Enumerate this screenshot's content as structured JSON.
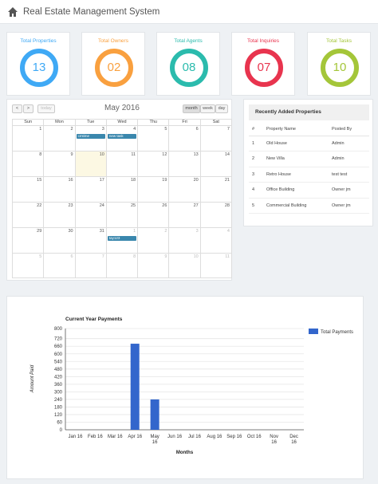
{
  "app": {
    "title": "Real Estate Management System"
  },
  "stats": [
    {
      "label": "Total Properties",
      "value": "13",
      "color": "#3fa9f5"
    },
    {
      "label": "Total Owners",
      "value": "02",
      "color": "#f9a03f"
    },
    {
      "label": "Total Agents",
      "value": "08",
      "color": "#2bbbad"
    },
    {
      "label": "Total Inquiries",
      "value": "07",
      "color": "#e8344e"
    },
    {
      "label": "Total Tasks",
      "value": "10",
      "color": "#a4c639"
    }
  ],
  "calendar": {
    "title": "May 2016",
    "prev": "<",
    "next": ">",
    "today": "today",
    "views": [
      "month",
      "week",
      "day"
    ],
    "active_view": "month",
    "days": [
      "Sun",
      "Mon",
      "Tue",
      "Wed",
      "Thu",
      "Fri",
      "Sat"
    ],
    "weeks": [
      [
        "1",
        "2",
        "3",
        "4",
        "5",
        "6",
        "7"
      ],
      [
        "8",
        "9",
        "10",
        "11",
        "12",
        "13",
        "14"
      ],
      [
        "15",
        "16",
        "17",
        "18",
        "19",
        "20",
        "21"
      ],
      [
        "22",
        "23",
        "24",
        "25",
        "26",
        "27",
        "28"
      ],
      [
        "29",
        "30",
        "31",
        "1",
        "2",
        "3",
        "4"
      ],
      [
        "5",
        "6",
        "7",
        "8",
        "9",
        "10",
        "11"
      ]
    ],
    "today_date": "10",
    "events": [
      {
        "week": 0,
        "day": 2,
        "label": "cmtime"
      },
      {
        "week": 0,
        "day": 3,
        "label": "new task"
      },
      {
        "week": 4,
        "day": 3,
        "label": "tay123"
      }
    ]
  },
  "properties": {
    "title": "Recently Added Properties",
    "columns": [
      "#",
      "Property Name",
      "Posted By"
    ],
    "rows": [
      [
        "1",
        "Old House",
        "Admin"
      ],
      [
        "2",
        "New Villa",
        "Admin"
      ],
      [
        "3",
        "Retro House",
        "test test"
      ],
      [
        "4",
        "Office Building",
        "Owner jm"
      ],
      [
        "5",
        "Commercial Building",
        "Owner jm"
      ]
    ]
  },
  "chart_data": {
    "type": "bar",
    "title": "Current Year Payments",
    "xlabel": "Months",
    "ylabel": "Amount Paid",
    "categories": [
      "Jan 16",
      "Feb 16",
      "Mar 16",
      "Apr 16",
      "May 16",
      "Jun 16",
      "Jul 16",
      "Aug 16",
      "Sep 16",
      "Oct 16",
      "Nov 16",
      "Dec 16"
    ],
    "series": [
      {
        "name": "Total Payments",
        "values": [
          0,
          0,
          0,
          680,
          240,
          0,
          0,
          0,
          0,
          0,
          0,
          0
        ],
        "color": "#3366cc"
      }
    ],
    "ylim": [
      0,
      800
    ],
    "yticks": [
      0,
      60,
      120,
      180,
      240,
      300,
      360,
      420,
      480,
      540,
      600,
      660,
      720,
      800
    ],
    "legend": "top-right",
    "grid": true
  }
}
